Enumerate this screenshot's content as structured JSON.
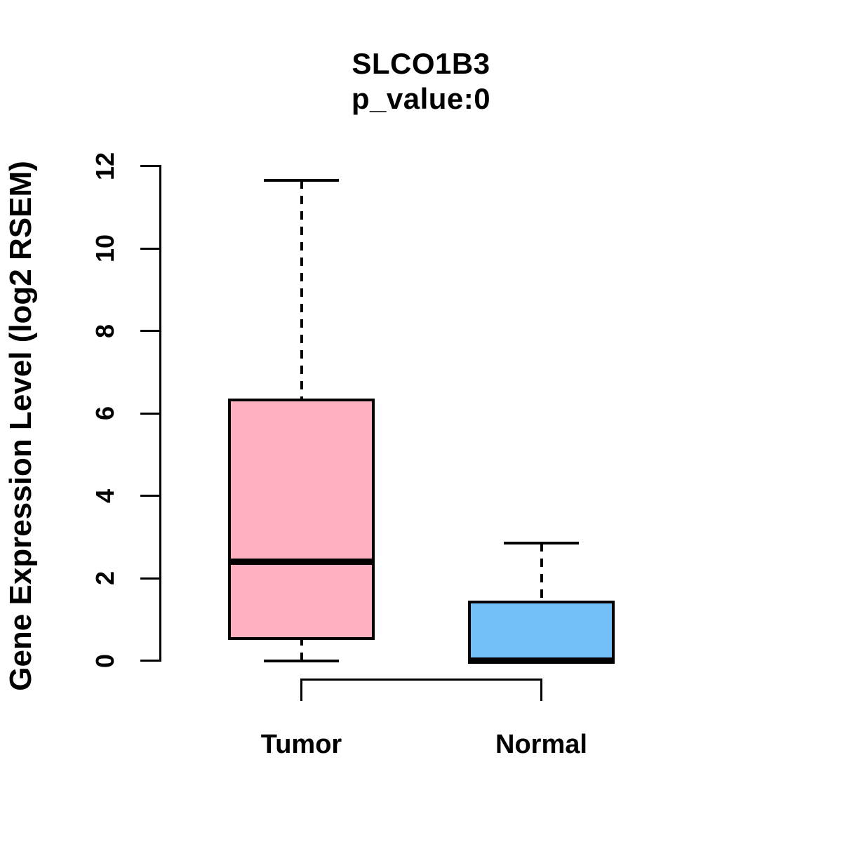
{
  "figure": {
    "background": "#FFFFFF",
    "text_color": "#000000"
  },
  "chart_data": {
    "type": "boxplot",
    "title": "SLCO1B3",
    "subtitle": "p_value:0",
    "ylabel": "Gene Expression Level (log2 RSEM)",
    "xlabel": "",
    "ylim": [
      0,
      12
    ],
    "yticks": [
      0,
      2,
      4,
      6,
      8,
      10,
      12
    ],
    "grid": false,
    "legend": false,
    "categories": [
      "Tumor",
      "Normal"
    ],
    "series": [
      {
        "name": "Tumor",
        "lower_whisker": 0,
        "q1": 0.5,
        "median": 2.4,
        "q3": 6.35,
        "upper_whisker": 11.65,
        "fill_color": "#FFB1C1",
        "border_color": "#000000"
      },
      {
        "name": "Normal",
        "lower_whisker": 0,
        "q1": 0,
        "median": 0,
        "q3": 1.45,
        "upper_whisker": 2.85,
        "fill_color": "#74BFF7",
        "border_color": "#000000"
      }
    ],
    "significance_bracket": {
      "between": [
        "Tumor",
        "Normal"
      ]
    }
  }
}
